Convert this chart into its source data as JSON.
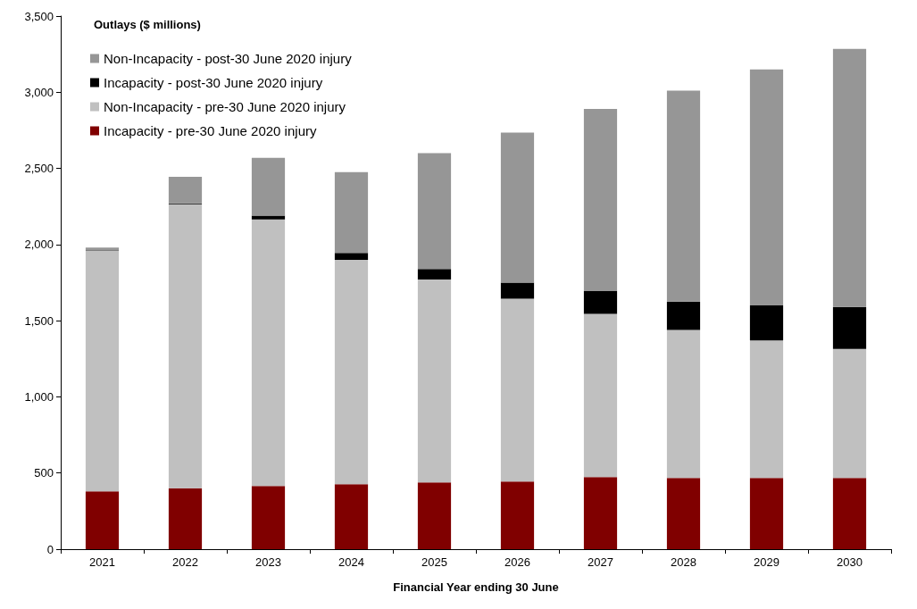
{
  "chart_data": {
    "type": "bar",
    "title": "Outlays ($ millions)",
    "xlabel": "Financial Year ending 30 June",
    "categories": [
      "2021",
      "2022",
      "2023",
      "2024",
      "2025",
      "2026",
      "2027",
      "2028",
      "2029",
      "2030"
    ],
    "stacked": true,
    "series": [
      {
        "name": "Incapacity - pre-30 June 2020 injury",
        "color": "#800000",
        "values": [
          380,
          400,
          415,
          427,
          438,
          444,
          473,
          467,
          467,
          467
        ]
      },
      {
        "name": "Non-Incapacity - pre-30 June 2020 injury",
        "color": "#c0c0c0",
        "values": [
          1580,
          1865,
          1750,
          1473,
          1332,
          1201,
          1072,
          973,
          903,
          848
        ]
      },
      {
        "name": "Incapacity - post-30 June 2020 injury",
        "color": "#000000",
        "values": [
          2,
          5,
          25,
          45,
          70,
          105,
          150,
          185,
          230,
          275
        ]
      },
      {
        "name": "Non-Incapacity - post-30 June 2020 injury",
        "color": "#969696",
        "values": [
          18,
          175,
          380,
          530,
          760,
          985,
          1195,
          1385,
          1550,
          1695
        ]
      }
    ],
    "ylim": [
      0,
      3500
    ],
    "yticks": [
      0,
      500,
      {
        "value": 1000,
        "label": "1,000"
      },
      {
        "value": 1500,
        "label": "1,500"
      },
      {
        "value": 2000,
        "label": "2,000"
      },
      {
        "value": 2500,
        "label": "2,500"
      },
      {
        "value": 3000,
        "label": "3,000"
      },
      {
        "value": 3500,
        "label": "3,500"
      }
    ],
    "grid": false,
    "legend": "top left"
  }
}
